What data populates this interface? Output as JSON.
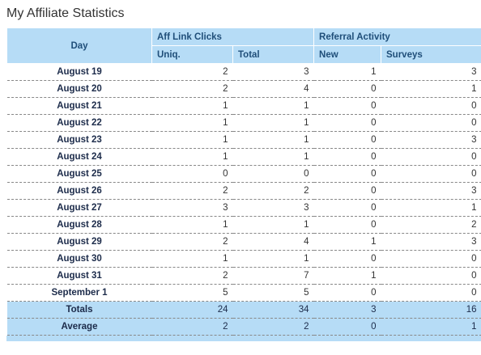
{
  "header": {
    "title": "My Affiliate Statistics"
  },
  "table": {
    "group_headers": [
      "Day",
      "Aff Link Clicks",
      "Referral Activity"
    ],
    "columns": [
      "Uniq.",
      "Total",
      "New",
      "Surveys"
    ],
    "rows": [
      [
        "August 19",
        2,
        3,
        1,
        3
      ],
      [
        "August 20",
        2,
        4,
        0,
        1
      ],
      [
        "August 21",
        1,
        1,
        0,
        0
      ],
      [
        "August 22",
        1,
        1,
        0,
        0
      ],
      [
        "August 23",
        1,
        1,
        0,
        3
      ],
      [
        "August 24",
        1,
        1,
        0,
        0
      ],
      [
        "August 25",
        0,
        0,
        0,
        0
      ],
      [
        "August 26",
        2,
        2,
        0,
        3
      ],
      [
        "August 27",
        3,
        3,
        0,
        1
      ],
      [
        "August 28",
        1,
        1,
        0,
        2
      ],
      [
        "August 29",
        2,
        4,
        1,
        3
      ],
      [
        "August 30",
        1,
        1,
        0,
        0
      ],
      [
        "August 31",
        2,
        7,
        1,
        0
      ],
      [
        "September 1",
        5,
        5,
        0,
        0
      ]
    ],
    "summary": [
      [
        "Totals",
        24,
        34,
        3,
        16
      ],
      [
        "Average",
        2,
        2,
        0,
        1
      ]
    ]
  }
}
